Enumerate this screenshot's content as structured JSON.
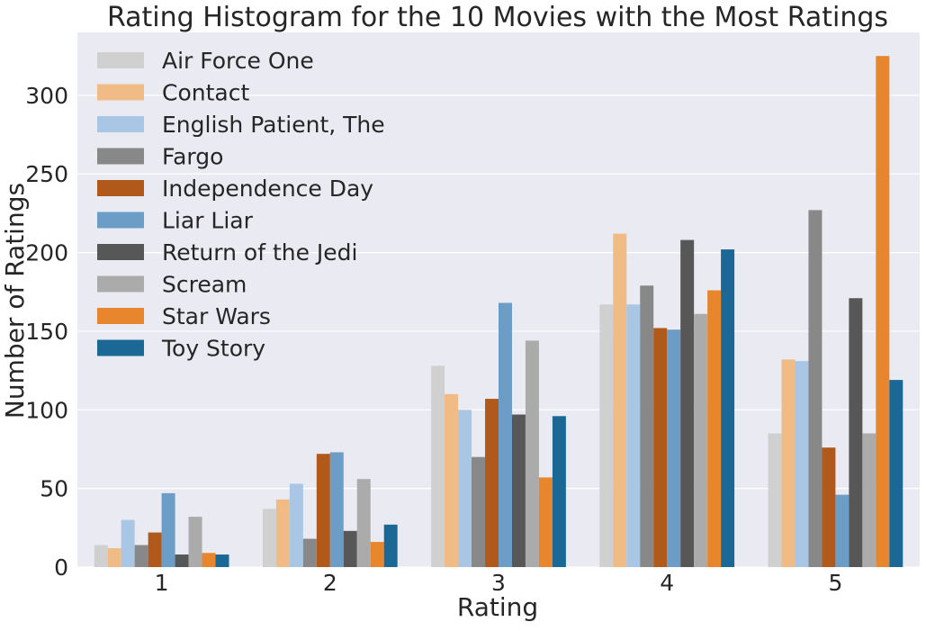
{
  "chart_data": {
    "type": "bar",
    "title": "Rating Histogram for the 10 Movies with the Most Ratings",
    "xlabel": "Rating",
    "ylabel": "Number of Ratings",
    "categories": [
      "1",
      "2",
      "3",
      "4",
      "5"
    ],
    "ylim": [
      0,
      340
    ],
    "yticks": [
      0,
      50,
      100,
      150,
      200,
      250,
      300
    ],
    "grid": true,
    "legend_position": "top-left",
    "series": [
      {
        "name": "Air Force One",
        "color": "#d0d0d0",
        "values": [
          14,
          37,
          128,
          167,
          85
        ]
      },
      {
        "name": "Contact",
        "color": "#f1bb86",
        "values": [
          12,
          43,
          110,
          212,
          132
        ]
      },
      {
        "name": "English Patient, The",
        "color": "#a9c7e4",
        "values": [
          30,
          53,
          100,
          167,
          131
        ]
      },
      {
        "name": "Fargo",
        "color": "#888888",
        "values": [
          14,
          18,
          70,
          179,
          227
        ]
      },
      {
        "name": "Independence Day",
        "color": "#b1591a",
        "values": [
          22,
          72,
          107,
          152,
          76
        ]
      },
      {
        "name": "Liar Liar",
        "color": "#6b9dc6",
        "values": [
          47,
          73,
          168,
          151,
          46
        ]
      },
      {
        "name": "Return of the Jedi",
        "color": "#575757",
        "values": [
          8,
          23,
          97,
          208,
          171
        ]
      },
      {
        "name": "Scream",
        "color": "#ababab",
        "values": [
          32,
          56,
          144,
          161,
          85
        ]
      },
      {
        "name": "Star Wars",
        "color": "#e8862e",
        "values": [
          9,
          16,
          57,
          176,
          325
        ]
      },
      {
        "name": "Toy Story",
        "color": "#1b6896",
        "values": [
          8,
          27,
          96,
          202,
          119
        ]
      }
    ]
  },
  "colors": {
    "plot_background": "#eaeaf2",
    "grid": "#ffffff",
    "text": "#262626"
  }
}
